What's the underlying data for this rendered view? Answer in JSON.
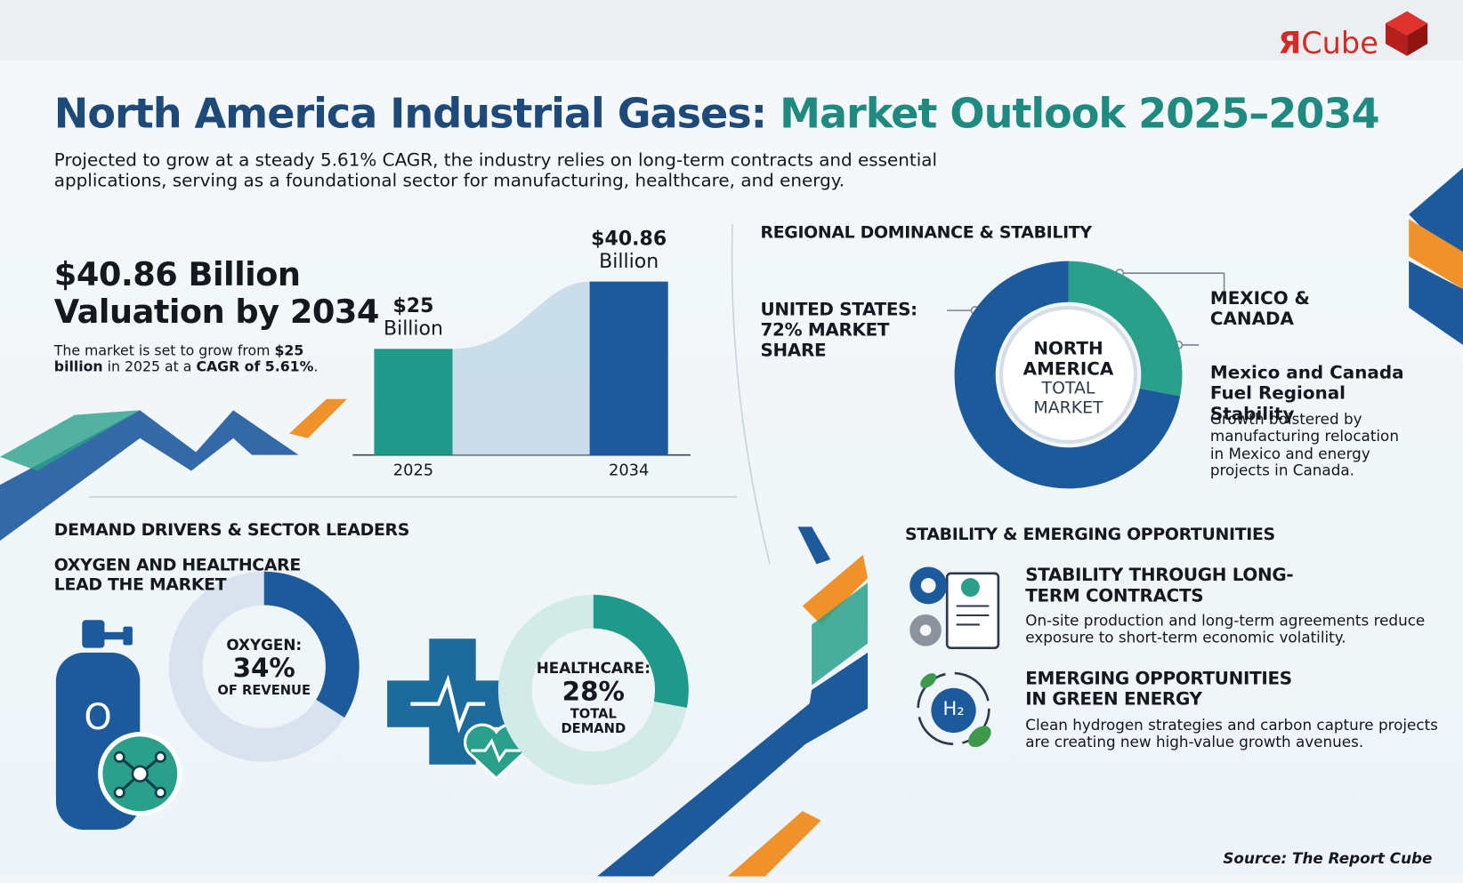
{
  "header": {
    "brand_mark": "Я",
    "brand_name": "Cube",
    "title_main": "North America Industrial Gases:",
    "title_accent": "Market Outlook 2025–2034",
    "subtitle": "Projected to grow at a steady 5.61% CAGR, the industry relies on long-term contracts and essential applications, serving as a foundational sector for manufacturing, healthcare, and energy."
  },
  "valuation": {
    "headline": "$40.86 Billion Valuation by 2034",
    "text_parts": [
      "The market is set to grow from ",
      "$25 billion",
      " in 2025 at a ",
      "CAGR of 5.61%",
      "."
    ]
  },
  "regional": {
    "heading": "REGIONAL DOMINANCE & STABILITY",
    "center_title": "NORTH AMERICA",
    "center_sub": "TOTAL MARKET",
    "note_title": "Mexico and Canada Fuel Regional Stability",
    "note_text": "Growth bolstered by manufacturing relocation in Mexico and energy projects in Canada."
  },
  "drivers": {
    "heading": "DEMAND DRIVERS & SECTOR LEADERS",
    "subheading": "OXYGEN AND HEALTHCARE LEAD THE MARKET",
    "tank_label": "O"
  },
  "opportunities": {
    "heading": "STABILITY & EMERGING OPPORTUNITIES",
    "items": [
      {
        "title": "STABILITY THROUGH LONG-TERM CONTRACTS",
        "text": "On-site production and long-term agreements reduce exposure to short-term economic volatility."
      },
      {
        "title": "EMERGING OPPORTUNITIES IN GREEN ENERGY",
        "text": "Clean hydrogen strategies and carbon capture projects are creating new high-value growth avenues."
      }
    ],
    "icon_label": "H₂"
  },
  "source": "Source: The Report Cube",
  "chart_data": [
    {
      "type": "bar",
      "categories": [
        "2025",
        "2034"
      ],
      "values": [
        25,
        40.86
      ],
      "value_labels": [
        "$25 Billion",
        "$40.86 Billion"
      ],
      "colors": [
        "#1f9a8a",
        "#1d5a9c"
      ]
    },
    {
      "type": "donut",
      "categories": [
        "UNITED STATES: 72% MARKET SHARE",
        "MEXICO & CANADA"
      ],
      "values": [
        72,
        28
      ],
      "colors": [
        "#1d5a9c",
        "#2aa08a"
      ]
    },
    {
      "type": "donut",
      "categories": [
        "OXYGEN:"
      ],
      "values": [
        34
      ],
      "value_labels": [
        "34%"
      ],
      "caption": "OF REVENUE",
      "colors": [
        "#1d5a9c"
      ],
      "track": "#d9e3ef"
    },
    {
      "type": "donut",
      "categories": [
        "HEALTHCARE:"
      ],
      "values": [
        28
      ],
      "value_labels": [
        "28%"
      ],
      "caption": "TOTAL DEMAND",
      "colors": [
        "#1f9a8a"
      ],
      "track": "#d3ebe6"
    }
  ]
}
